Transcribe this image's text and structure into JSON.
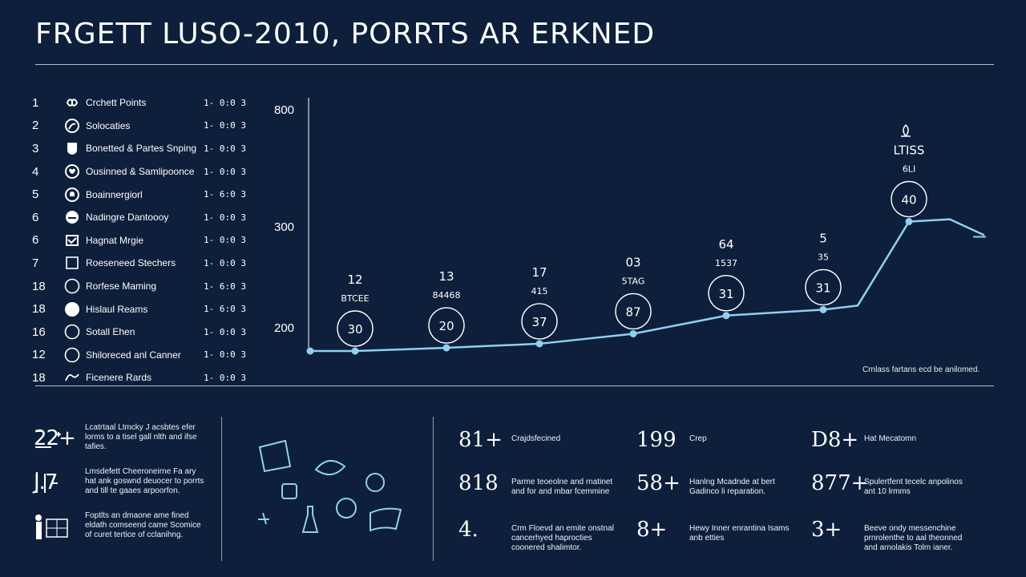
{
  "header": {
    "title": "FRGETT LUSO-2010, PORRTS AR ERKNED"
  },
  "list": [
    {
      "rank": "1",
      "label": "Crchett Points",
      "value": "1- 0:0 3",
      "icon": "infinity-icon"
    },
    {
      "rank": "2",
      "label": "Solocaties",
      "value": "1- 0:0 3",
      "icon": "leaf-icon"
    },
    {
      "rank": "3",
      "label": "Bonetted & Partes Snping",
      "value": "1- 0:0 3",
      "icon": "shield-icon"
    },
    {
      "rank": "4",
      "label": "Ousinned & Samlipoonce",
      "value": "1- 0:0 3",
      "icon": "heart-icon"
    },
    {
      "rank": "5",
      "label": "Boainnergiorl",
      "value": "1- 6:0 3",
      "icon": "bell-icon"
    },
    {
      "rank": "6",
      "label": "Nadingre Dantoooy",
      "value": "1- 0:0 3",
      "icon": "cloud-icon"
    },
    {
      "rank": "6",
      "label": "Hagnat Mrgie",
      "value": "1- 0:0 3",
      "icon": "mail-icon"
    },
    {
      "rank": "7",
      "label": "Roeseneed Stechers",
      "value": "1- 0:0 3",
      "icon": "square-icon"
    },
    {
      "rank": "18",
      "label": "Rorfese Maming",
      "value": "1- 6:0 3",
      "icon": "circle-icon"
    },
    {
      "rank": "18",
      "label": "Hislaul Reams",
      "value": "1- 6:0 3",
      "icon": "filled-circle-icon"
    },
    {
      "rank": "16",
      "label": "Sotall Ehen",
      "value": "1- 0:0 3",
      "icon": "circle-icon"
    },
    {
      "rank": "12",
      "label": "Shiloreced anl Canner",
      "value": "1- 0:0 3",
      "icon": "circle-icon"
    },
    {
      "rank": "18",
      "label": "Ficenere Rards",
      "value": "1- 0:0 3",
      "icon": "wave-icon"
    }
  ],
  "chart_data": {
    "type": "line",
    "yticks": [
      "800",
      "300",
      "200"
    ],
    "title": "",
    "xlabel": "",
    "ylabel": "",
    "grid": false,
    "line_color": "#8fd0f0",
    "points": [
      {
        "y": 200
      },
      {
        "y": 200,
        "circle": "30",
        "top": "12",
        "sub": "BTCEE"
      },
      {
        "y": 207,
        "circle": "20",
        "top": "13",
        "sub": "84468"
      },
      {
        "y": 216,
        "circle": "37",
        "top": "17",
        "sub": "415"
      },
      {
        "y": 238,
        "circle": "87",
        "top": "03",
        "sub": "5TAG"
      },
      {
        "y": 278,
        "circle": "31",
        "top": "64",
        "sub": "1537"
      },
      {
        "y": 291,
        "circle": "31",
        "top": "5",
        "sub": "35"
      },
      {
        "y": 300
      },
      {
        "y": 485,
        "circle": "40",
        "top": "LTISS",
        "sub": "6LI"
      },
      {
        "y": 490
      },
      {
        "y": 455
      }
    ],
    "footnote": "Crnlass fartans ecd be anilomed."
  },
  "bottom": {
    "col1": [
      {
        "icon": "chart-doodle-icon",
        "big": "22+",
        "text": "Lcatrtaal Ltmcky J acsbtes efer lorms to a tisel gall nlth and ifse tafies."
      },
      {
        "icon": "tick-doodle-icon",
        "big": "J.7",
        "text": "Lmsdefett Cheeroneirne Fa ary hat ank goswnd deuocer to porrts and till te gaaes arpoorfon."
      },
      {
        "icon": "presenter-icon",
        "big": "",
        "text": "Foptlts an dmaone ame fined eldath comseend came Scomice of curet tertice of cclanihng."
      }
    ],
    "stats": [
      {
        "big": "81+",
        "text": "Crajdsfecined"
      },
      {
        "big": "199",
        "text": "Crep"
      },
      {
        "big": "D8+",
        "text": "Hat Mecatomn"
      },
      {
        "big": "818",
        "text": "Parme teoeolne and rnatinet and for and mbar fcemmine"
      },
      {
        "big": "58+",
        "text": "Hanlng Mcadnde at bert Gadinco li reparation."
      },
      {
        "big": "877+",
        "text": "Spulertfent tecelc anpolinos ant 10 lrmms"
      },
      {
        "big": "4.",
        "text": "Crm Floevd an emite onstnal cancerhyed haprocties coonered shalimtor."
      },
      {
        "big": "8+",
        "text": "Hewy Inner enrantina Isams anb etties"
      },
      {
        "big": "3+",
        "text": "Beeve ondy messenchine prnrolenthe to aal theonned and arnolakis Tolm ianer."
      }
    ]
  }
}
